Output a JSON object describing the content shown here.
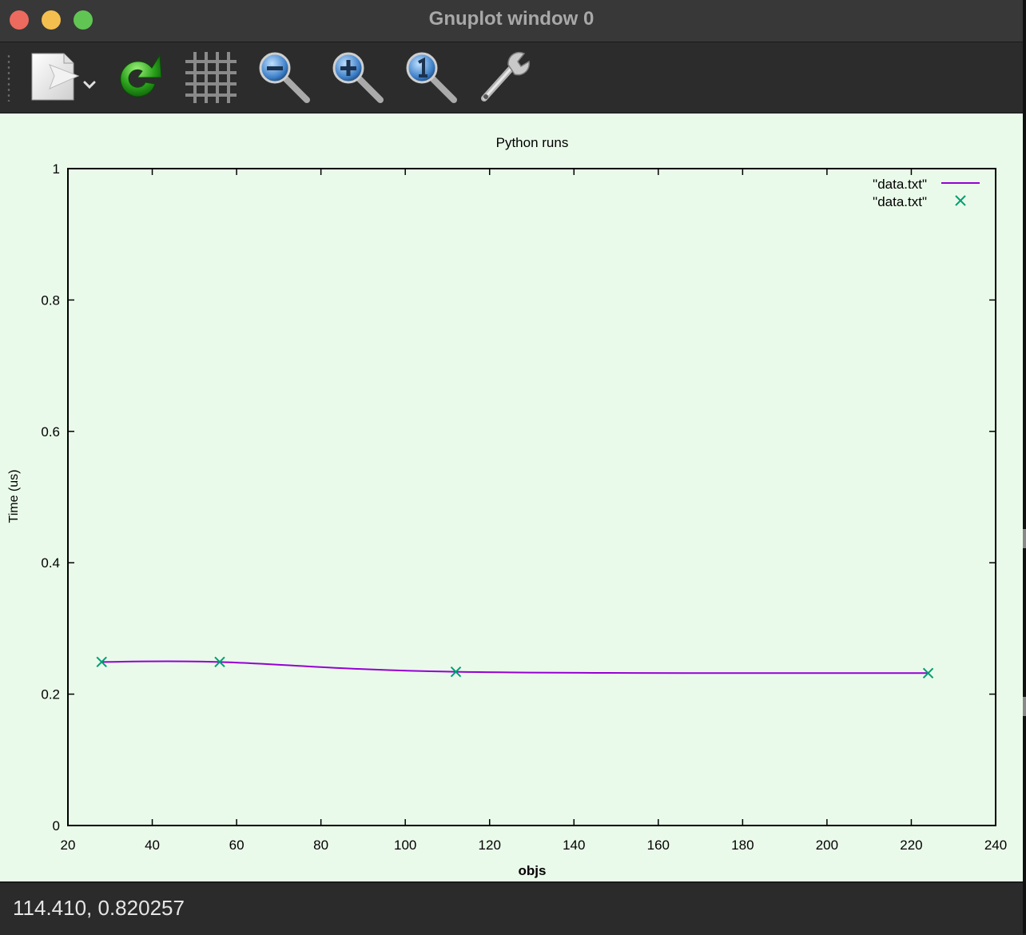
{
  "window": {
    "title": "Gnuplot window 0"
  },
  "toolbar": {
    "items": [
      {
        "icon": "export-icon",
        "label": "Export"
      },
      {
        "icon": "replot-icon",
        "label": "Replot"
      },
      {
        "icon": "grid-icon",
        "label": "Show grid"
      },
      {
        "icon": "zoom-out-icon",
        "label": "Previous zoom"
      },
      {
        "icon": "zoom-in-icon",
        "label": "Next zoom"
      },
      {
        "icon": "zoom-reset-icon",
        "label": "Autoscale"
      },
      {
        "icon": "settings-icon",
        "label": "Terminal configuration"
      }
    ]
  },
  "status": {
    "coordinates": "114.410, 0.820257"
  },
  "colors": {
    "plot_background": "#eafaea",
    "line_color": "#9400d3",
    "point_color": "#009e73"
  },
  "chart_data": {
    "type": "line",
    "title": "Python runs",
    "xlabel": "objs",
    "ylabel": "Time (us)",
    "xlim": [
      20,
      240
    ],
    "ylim": [
      0,
      1
    ],
    "xticks": [
      "20",
      "40",
      "60",
      "80",
      "100",
      "120",
      "140",
      "160",
      "180",
      "200",
      "220",
      "240"
    ],
    "yticks": [
      "0",
      "0.2",
      "0.4",
      "0.6",
      "0.8",
      "1"
    ],
    "grid": false,
    "legend_position": "top-right",
    "series": [
      {
        "name": "\"data.txt\"",
        "style": "smooth-line",
        "x": [
          28,
          56,
          112,
          224
        ],
        "y": [
          0.249,
          0.249,
          0.234,
          0.232
        ]
      },
      {
        "name": "\"data.txt\"",
        "style": "points",
        "x": [
          28,
          56,
          112,
          224
        ],
        "y": [
          0.249,
          0.249,
          0.234,
          0.232
        ]
      }
    ]
  }
}
